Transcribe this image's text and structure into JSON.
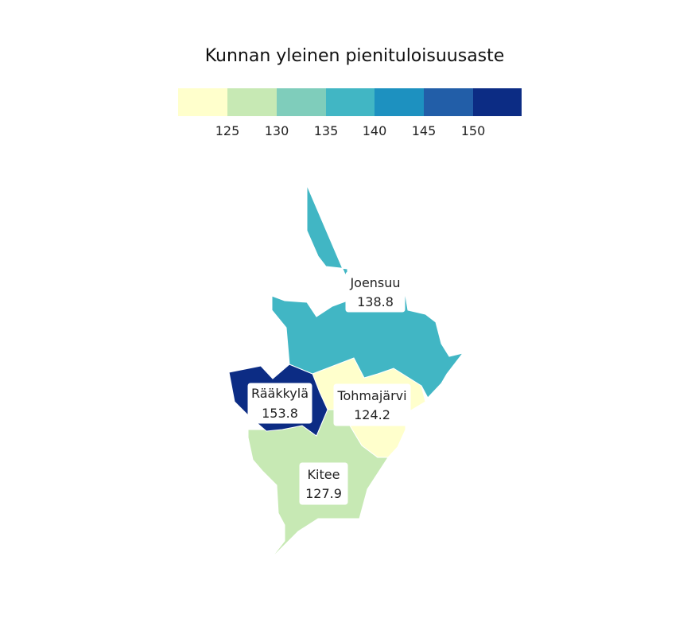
{
  "map": {
    "title": "Kunnan yleinen pienituloisuusaste",
    "legend": {
      "colors": [
        "#ffffcc",
        "#c7e9b4",
        "#7fcdbb",
        "#41b6c4",
        "#1d91c0",
        "#225ea8",
        "#0c2c84"
      ],
      "ticks": [
        "125",
        "130",
        "135",
        "140",
        "145",
        "150"
      ]
    },
    "regions": [
      {
        "id": "joensuu",
        "name": "Joensuu",
        "value": "138.8",
        "color": "#41b6c4"
      },
      {
        "id": "raakkyla",
        "name": "Rääkkylä",
        "value": "153.8",
        "color": "#0c2c84"
      },
      {
        "id": "tohmajarvi",
        "name": "Tohmajärvi",
        "value": "124.2",
        "color": "#ffffcc"
      },
      {
        "id": "kitee",
        "name": "Kitee",
        "value": "127.9",
        "color": "#c7e9b4"
      }
    ]
  }
}
